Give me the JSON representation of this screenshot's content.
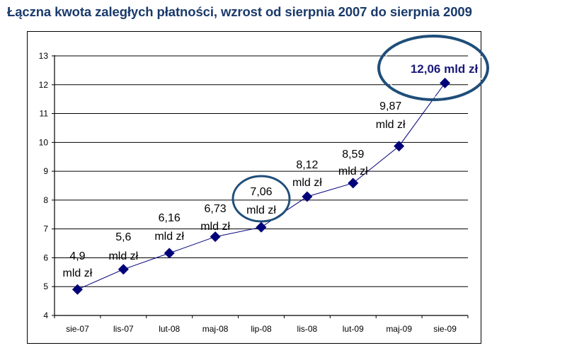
{
  "title": "Łączna kwota zaległych płatności, wzrost od sierpnia 2007 do sierpnia 2009",
  "chart_data": {
    "type": "line",
    "title": "Łączna kwota zaległych płatności, wzrost od sierpnia 2007 do sierpnia 2009",
    "xlabel": "",
    "ylabel": "",
    "categories": [
      "sie-07",
      "lis-07",
      "lut-08",
      "maj-08",
      "lip-08",
      "lis-08",
      "lut-09",
      "maj-09",
      "sie-09"
    ],
    "series": [
      {
        "name": "Łączna kwota zaległych płatności (mld zł)",
        "values": [
          4.9,
          5.6,
          6.16,
          6.73,
          7.06,
          8.12,
          8.59,
          9.87,
          12.06
        ],
        "marker": "diamond",
        "color": "#00007a"
      }
    ],
    "data_labels": [
      {
        "value": "4,9",
        "unit": "mld zł"
      },
      {
        "value": "5,6",
        "unit": "mld zł"
      },
      {
        "value": "6,16",
        "unit": "mld zł"
      },
      {
        "value": "6,73",
        "unit": "mld zł"
      },
      {
        "value": "7,06",
        "unit": "mld zł"
      },
      {
        "value": "8,12",
        "unit": "mld zł"
      },
      {
        "value": "8,59",
        "unit": "mld zł"
      },
      {
        "value": "9,87",
        "unit": "mld zł"
      },
      {
        "value": "12,06 mld zł",
        "unit": ""
      }
    ],
    "highlighted": [
      "lip-08",
      "sie-09"
    ],
    "yticks": [
      4,
      5,
      6,
      7,
      8,
      9,
      10,
      11,
      12,
      13
    ],
    "ylim": [
      4,
      13
    ],
    "grid": true,
    "legend": "none"
  },
  "colors": {
    "title": "#1a3a6b",
    "marker": "#00007a",
    "highlight_ellipse": "#1f4e79",
    "highlight_text": "#1a1a7a"
  }
}
